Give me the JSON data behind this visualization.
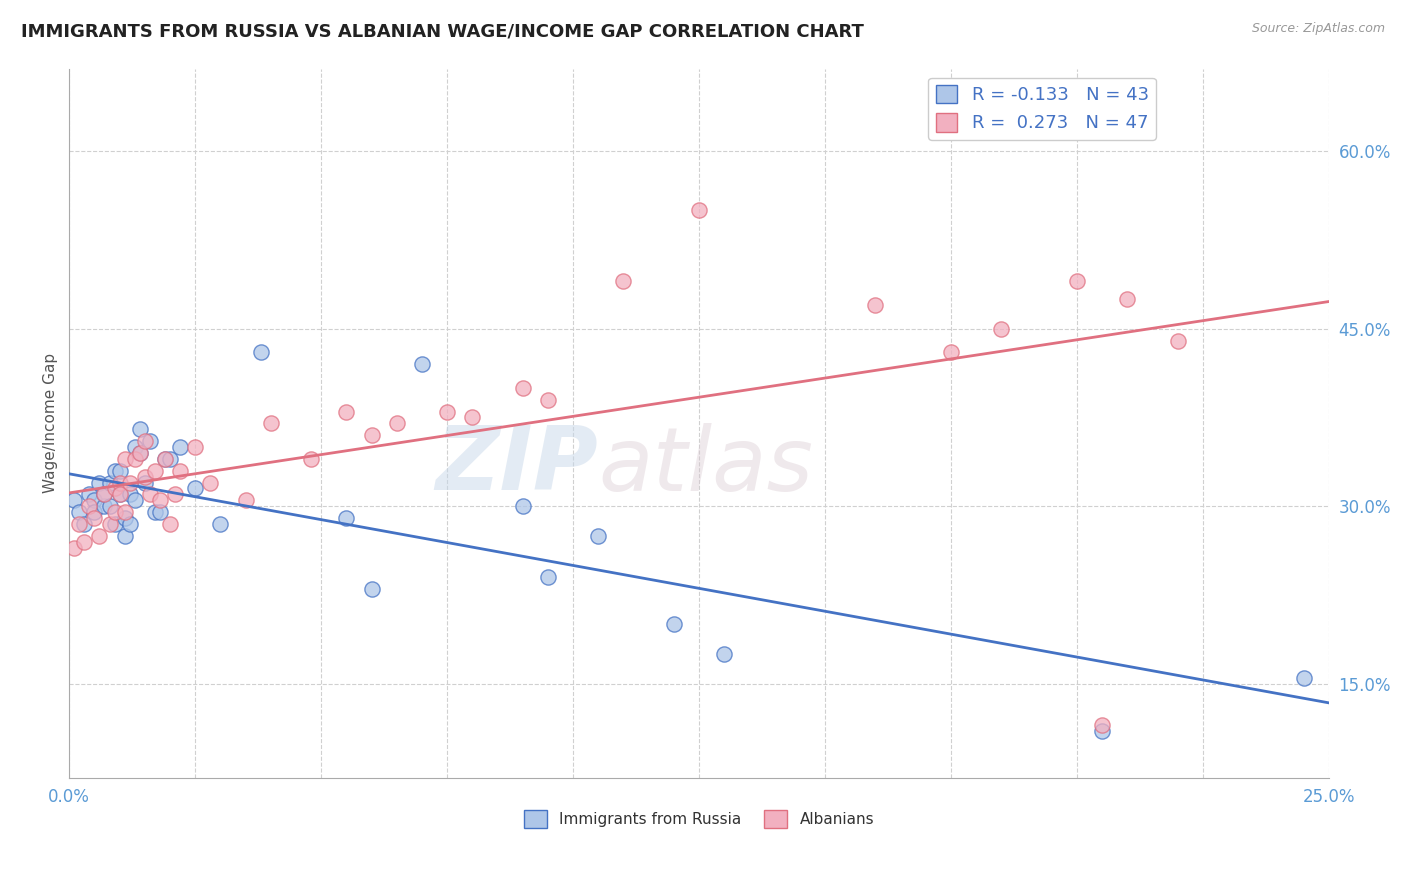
{
  "title": "IMMIGRANTS FROM RUSSIA VS ALBANIAN WAGE/INCOME GAP CORRELATION CHART",
  "source": "Source: ZipAtlas.com",
  "ylabel": "Wage/Income Gap",
  "xlim": [
    0.0,
    0.25
  ],
  "ylim": [
    0.07,
    0.67
  ],
  "xticks": [
    0.0,
    0.025,
    0.05,
    0.075,
    0.1,
    0.125,
    0.15,
    0.175,
    0.2,
    0.225,
    0.25
  ],
  "yticks": [
    0.15,
    0.3,
    0.45,
    0.6
  ],
  "yticklabels": [
    "15.0%",
    "30.0%",
    "45.0%",
    "60.0%"
  ],
  "blue_R": -0.133,
  "blue_N": 43,
  "pink_R": 0.273,
  "pink_N": 47,
  "blue_color": "#aec6e8",
  "pink_color": "#f2b0c0",
  "blue_line_color": "#4472c4",
  "pink_line_color": "#e07080",
  "legend_label_blue": "Immigrants from Russia",
  "legend_label_pink": "Albanians",
  "blue_x": [
    0.001,
    0.002,
    0.003,
    0.004,
    0.005,
    0.005,
    0.006,
    0.007,
    0.007,
    0.008,
    0.008,
    0.009,
    0.009,
    0.01,
    0.01,
    0.011,
    0.011,
    0.012,
    0.012,
    0.013,
    0.013,
    0.014,
    0.014,
    0.015,
    0.016,
    0.017,
    0.018,
    0.019,
    0.02,
    0.022,
    0.025,
    0.03,
    0.038,
    0.055,
    0.06,
    0.07,
    0.09,
    0.095,
    0.105,
    0.12,
    0.13,
    0.205,
    0.245
  ],
  "blue_y": [
    0.305,
    0.295,
    0.285,
    0.31,
    0.305,
    0.295,
    0.32,
    0.3,
    0.31,
    0.3,
    0.32,
    0.285,
    0.33,
    0.31,
    0.33,
    0.275,
    0.29,
    0.31,
    0.285,
    0.305,
    0.35,
    0.345,
    0.365,
    0.32,
    0.355,
    0.295,
    0.295,
    0.34,
    0.34,
    0.35,
    0.315,
    0.285,
    0.43,
    0.29,
    0.23,
    0.42,
    0.3,
    0.24,
    0.275,
    0.2,
    0.175,
    0.11,
    0.155
  ],
  "pink_x": [
    0.001,
    0.002,
    0.003,
    0.004,
    0.005,
    0.006,
    0.007,
    0.008,
    0.009,
    0.009,
    0.01,
    0.01,
    0.011,
    0.011,
    0.012,
    0.013,
    0.014,
    0.015,
    0.015,
    0.016,
    0.017,
    0.018,
    0.019,
    0.02,
    0.021,
    0.022,
    0.025,
    0.028,
    0.035,
    0.04,
    0.048,
    0.055,
    0.06,
    0.065,
    0.075,
    0.08,
    0.09,
    0.095,
    0.11,
    0.125,
    0.16,
    0.175,
    0.185,
    0.2,
    0.205,
    0.21,
    0.22
  ],
  "pink_y": [
    0.265,
    0.285,
    0.27,
    0.3,
    0.29,
    0.275,
    0.31,
    0.285,
    0.315,
    0.295,
    0.32,
    0.31,
    0.34,
    0.295,
    0.32,
    0.34,
    0.345,
    0.325,
    0.355,
    0.31,
    0.33,
    0.305,
    0.34,
    0.285,
    0.31,
    0.33,
    0.35,
    0.32,
    0.305,
    0.37,
    0.34,
    0.38,
    0.36,
    0.37,
    0.38,
    0.375,
    0.4,
    0.39,
    0.49,
    0.55,
    0.47,
    0.43,
    0.45,
    0.49,
    0.115,
    0.475,
    0.44
  ],
  "watermark_zip": "ZIP",
  "watermark_atlas": "atlas",
  "background_color": "#ffffff",
  "grid_color": "#d0d0d0",
  "tick_color": "#5b9bd5"
}
